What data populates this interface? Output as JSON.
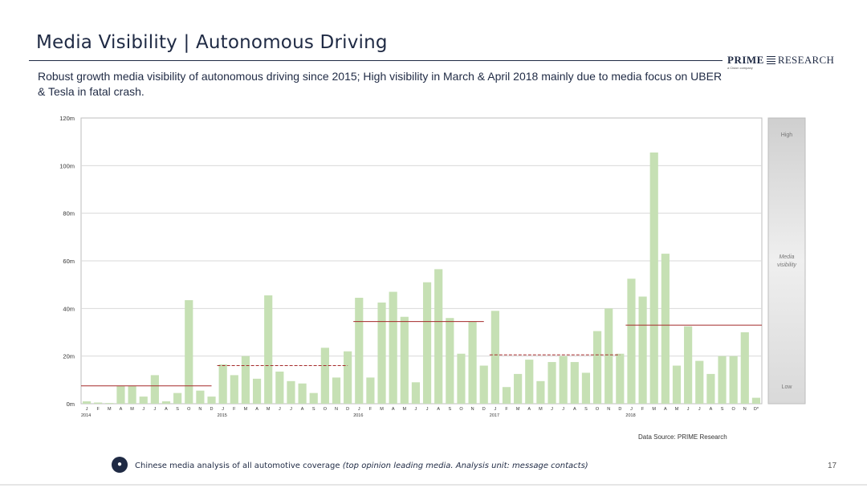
{
  "slide": {
    "title": "Media Visibility | Autonomous Driving",
    "subtitle": "Robust growth media visibility of autonomous driving since 2015; High visibility in March & April 2018 mainly due to media focus on UBER & Tesla in fatal crash.",
    "logo_prime": "PRIME",
    "logo_research": "RESEARCH",
    "logo_sub": "a Cision company",
    "source": "Data Source: PRIME Research",
    "footnote_main": "Chinese media analysis of all automotive coverage",
    "footnote_italic": "(top opinion leading media. Analysis unit: message contacts)",
    "page_number": "17"
  },
  "colors": {
    "bar": "#c6e0b4",
    "avg_line": "#a52a2a",
    "navy": "#1f2a44"
  },
  "chart_data": {
    "type": "bar",
    "title": "",
    "xlabel": "",
    "ylabel": "",
    "ylim": [
      0,
      120
    ],
    "yticks": [
      0,
      20,
      40,
      60,
      80,
      100,
      120
    ],
    "ytick_labels": [
      "0m",
      "20m",
      "40m",
      "60m",
      "80m",
      "100m",
      "120m"
    ],
    "categories": [
      "J",
      "F",
      "M",
      "A",
      "M",
      "J",
      "J",
      "A",
      "S",
      "O",
      "N",
      "D",
      "J",
      "F",
      "M",
      "A",
      "M",
      "J",
      "J",
      "A",
      "S",
      "O",
      "N",
      "D",
      "J",
      "F",
      "M",
      "A",
      "M",
      "J",
      "J",
      "A",
      "S",
      "O",
      "N",
      "D",
      "J",
      "F",
      "M",
      "A",
      "M",
      "J",
      "J",
      "A",
      "S",
      "O",
      "N",
      "D",
      "J",
      "F",
      "M",
      "A",
      "M",
      "J",
      "J",
      "A",
      "S",
      "O",
      "N",
      "D*"
    ],
    "year_labels": [
      {
        "label": "2014",
        "index": 0
      },
      {
        "label": "2015",
        "index": 12
      },
      {
        "label": "2016",
        "index": 24
      },
      {
        "label": "2017",
        "index": 36
      },
      {
        "label": "2018",
        "index": 48
      }
    ],
    "series": [
      {
        "name": "Media visibility",
        "values": [
          1,
          0.5,
          0.3,
          7.5,
          7.5,
          3,
          12,
          1,
          4.5,
          43.5,
          5.5,
          3,
          16.5,
          12,
          20,
          10.5,
          45.5,
          13.5,
          9.5,
          8.5,
          4.5,
          23.5,
          11,
          22,
          44.5,
          11,
          42.5,
          47,
          36.5,
          9,
          51,
          56.5,
          36,
          21,
          34.5,
          16,
          39,
          7,
          12.5,
          18.5,
          9.5,
          17.5,
          20,
          17.5,
          13,
          30.5,
          40,
          21,
          52.5,
          45,
          105.5,
          63,
          16,
          32.5,
          18,
          12.5,
          20,
          20,
          30,
          2.5
        ]
      }
    ],
    "yearly_averages": [
      {
        "year": "2014",
        "value": 7.5,
        "style": "solid"
      },
      {
        "year": "2015",
        "value": 16,
        "style": "dashed"
      },
      {
        "year": "2016",
        "value": 34.5,
        "style": "solid"
      },
      {
        "year": "2017",
        "value": 20.5,
        "style": "dashed"
      },
      {
        "year": "2018",
        "value": 33,
        "style": "solid"
      }
    ],
    "scale_panel": {
      "high": "High",
      "middle_line1": "Media",
      "middle_line2": "visibility",
      "low": "Low"
    }
  }
}
